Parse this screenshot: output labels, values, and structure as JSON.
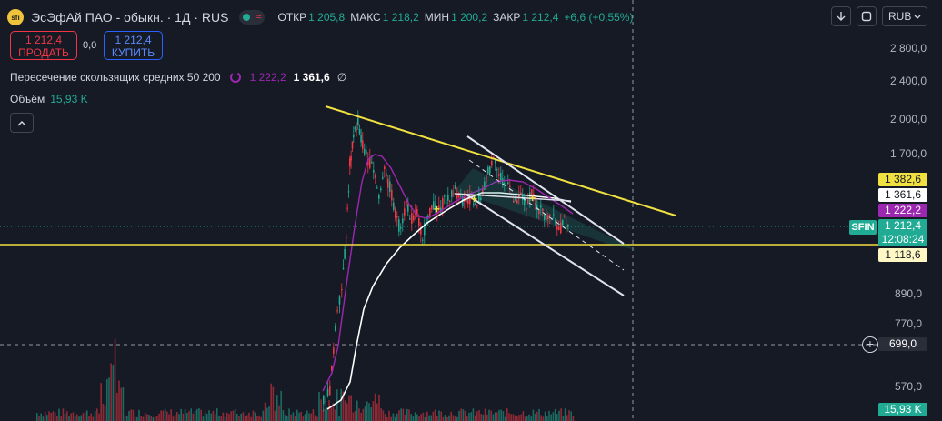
{
  "header": {
    "logo_text": "sfi",
    "title": "ЭсЭфАй ПАО - обыкн. · 1Д · RUS",
    "toggle_icon": "≈",
    "ohlc": [
      {
        "k": "ОТКР",
        "v": "1 205,8"
      },
      {
        "k": "МАКС",
        "v": "1 218,2"
      },
      {
        "k": "МИН",
        "v": "1 200,2"
      },
      {
        "k": "ЗАКР",
        "v": "1 212,4"
      }
    ],
    "change": "+6,6 (+0,55%)"
  },
  "trade": {
    "sell_price": "1 212,4",
    "sell_label": "ПРОДАТЬ",
    "spread": "0,0",
    "buy_price": "1 212,4",
    "buy_label": "КУПИТЬ"
  },
  "indicator": {
    "name": "Пересечение скользящих средних 50 200",
    "value1": "1 222,2",
    "value2": "1 361,6",
    "value3": "∅"
  },
  "volume": {
    "label": "Объём",
    "value": "15,93 K"
  },
  "toolbar": {
    "currency": "RUB"
  },
  "price_axis": {
    "ticks": [
      "2 800,0",
      "2 400,0",
      "2 000,0",
      "1 700,0",
      "890,0",
      "770,0",
      "570,0"
    ],
    "labels": {
      "l1382": "1 382,6",
      "l1361": "1 361,6",
      "l1222": "1 222,2",
      "l1118": "1 118,6",
      "crosshair": "699,0",
      "volume": "15,93 K"
    },
    "current_price": "1 212,4",
    "countdown": "12:08:24",
    "symbol": "SFIN"
  },
  "colors": {
    "background": "#161a25",
    "up": "#22ab94",
    "down": "#f23645",
    "trend": "#f0e040",
    "ma50": "#9c27b0",
    "ma200": "#ffffff"
  }
}
